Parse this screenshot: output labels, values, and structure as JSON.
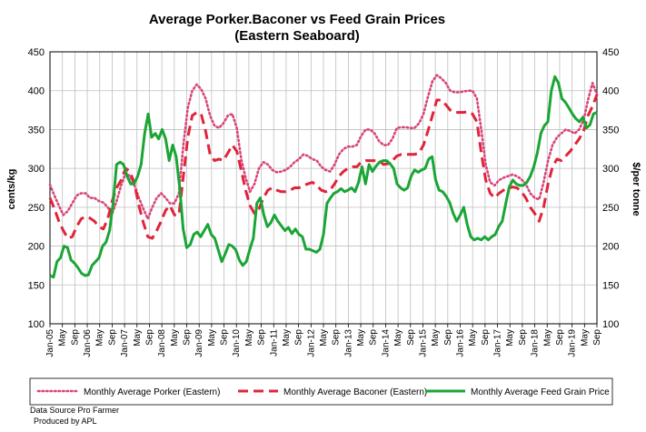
{
  "chart_data": {
    "type": "line",
    "title_line1": "Average Porker.Baconer vs Feed Grain Prices",
    "title_line2": "(Eastern Seaboard)",
    "ylabel_left": "cents/kg",
    "ylabel_right": "$/per tonne",
    "ylim_left": [
      100,
      450
    ],
    "ylim_right": [
      100,
      450
    ],
    "y_ticks_left": [
      "100",
      "150",
      "200",
      "250",
      "300",
      "350",
      "400",
      "450"
    ],
    "y_ticks_right": [
      "100",
      "150",
      "200",
      "250",
      "300",
      "350",
      "400",
      "450"
    ],
    "y_tick_values": [
      100,
      150,
      200,
      250,
      300,
      350,
      400,
      450
    ],
    "x_tick_labels": [
      "Jan-05",
      "May",
      "Sep",
      "Jan-06",
      "May",
      "Sep",
      "Jan-07",
      "May",
      "Sep",
      "Jan-08",
      "May",
      "Sep",
      "Jan-09",
      "May",
      "Sep",
      "Jan-10",
      "May",
      "Sep",
      "Jan-11",
      "May",
      "Sep",
      "Jan-12",
      "May",
      "Sep",
      "Jan-13",
      "May",
      "Sep",
      "Jan-14",
      "May",
      "Sep",
      "Jan-15",
      "May",
      "Sep",
      "Jan-16",
      "May",
      "Sep",
      "Jan-17",
      "May",
      "Sep",
      "Jan-18",
      "May",
      "Sep",
      "Jan-19",
      "May",
      "Sep"
    ],
    "grid": true,
    "legend_position": "bottom",
    "series": [
      {
        "name": "Monthly Average Porker (Eastern)",
        "color": "#d8457a",
        "style": "dotted",
        "values": [
          279,
          265,
          252,
          240,
          245,
          255,
          265,
          268,
          268,
          262,
          262,
          258,
          256,
          250,
          242,
          258,
          278,
          294,
          290,
          278,
          262,
          248,
          235,
          250,
          262,
          268,
          262,
          255,
          255,
          268,
          330,
          378,
          400,
          408,
          402,
          390,
          368,
          355,
          352,
          358,
          368,
          370,
          352,
          312,
          288,
          270,
          280,
          300,
          308,
          305,
          298,
          295,
          296,
          298,
          302,
          308,
          312,
          318,
          316,
          312,
          310,
          302,
          298,
          296,
          305,
          318,
          325,
          328,
          328,
          330,
          342,
          350,
          350,
          345,
          335,
          330,
          330,
          338,
          352,
          353,
          353,
          352,
          352,
          358,
          370,
          392,
          412,
          420,
          416,
          410,
          400,
          398,
          398,
          399,
          400,
          400,
          390,
          350,
          305,
          282,
          278,
          285,
          288,
          290,
          292,
          290,
          286,
          280,
          268,
          262,
          260,
          282,
          310,
          330,
          340,
          345,
          350,
          348,
          345,
          350,
          362,
          388,
          410,
          395
        ]
      },
      {
        "name": "Monthly Average Baconer (Eastern)",
        "color": "#e0243a",
        "style": "dashed",
        "values": [
          262,
          248,
          232,
          220,
          210,
          212,
          225,
          235,
          238,
          236,
          232,
          225,
          222,
          235,
          258,
          275,
          285,
          300,
          296,
          280,
          252,
          230,
          212,
          210,
          220,
          232,
          246,
          252,
          240,
          240,
          290,
          340,
          368,
          372,
          370,
          348,
          318,
          310,
          312,
          310,
          320,
          330,
          322,
          298,
          272,
          252,
          242,
          248,
          262,
          272,
          275,
          272,
          270,
          270,
          272,
          275,
          275,
          278,
          280,
          282,
          278,
          272,
          270,
          272,
          280,
          290,
          296,
          300,
          302,
          302,
          308,
          310,
          310,
          310,
          310,
          305,
          306,
          310,
          316,
          318,
          318,
          318,
          318,
          320,
          330,
          348,
          368,
          388,
          388,
          382,
          375,
          372,
          372,
          372,
          373,
          370,
          360,
          320,
          285,
          268,
          262,
          268,
          272,
          274,
          276,
          275,
          270,
          262,
          250,
          242,
          232,
          250,
          280,
          302,
          312,
          310,
          316,
          322,
          330,
          338,
          348,
          368,
          380,
          395
        ]
      },
      {
        "name": "Monthly Average Feed Grain Price",
        "color": "#1aa535",
        "style": "solid",
        "values": [
          162,
          160,
          180,
          185,
          200,
          198,
          182,
          178,
          172,
          165,
          162,
          163,
          175,
          180,
          185,
          200,
          205,
          220,
          255,
          305,
          308,
          305,
          290,
          280,
          280,
          290,
          305,
          345,
          370,
          340,
          345,
          338,
          350,
          338,
          310,
          330,
          315,
          275,
          222,
          198,
          202,
          215,
          218,
          212,
          220,
          228,
          215,
          210,
          195,
          180,
          190,
          202,
          200,
          195,
          182,
          175,
          180,
          196,
          210,
          255,
          262,
          240,
          225,
          230,
          240,
          232,
          226,
          220,
          224,
          216,
          222,
          215,
          212,
          196,
          196,
          194,
          192,
          196,
          215,
          255,
          262,
          268,
          270,
          274,
          270,
          272,
          275,
          270,
          282,
          302,
          280,
          305,
          296,
          303,
          308,
          310,
          310,
          306,
          300,
          280,
          275,
          272,
          275,
          290,
          298,
          295,
          298,
          300,
          312,
          315,
          285,
          272,
          270,
          264,
          256,
          242,
          232,
          240,
          250,
          228,
          212,
          208,
          210,
          208,
          212,
          208,
          212,
          215,
          225,
          232,
          255,
          276,
          285,
          280,
          278,
          278,
          282,
          290,
          302,
          320,
          345,
          355,
          360,
          400,
          418,
          410,
          390,
          385,
          378,
          370,
          364,
          360,
          366,
          352,
          356,
          370,
          372
        ]
      }
    ]
  },
  "footer": {
    "line1": "Data Source Pro Farmer",
    "line2": "Produced by APL"
  }
}
